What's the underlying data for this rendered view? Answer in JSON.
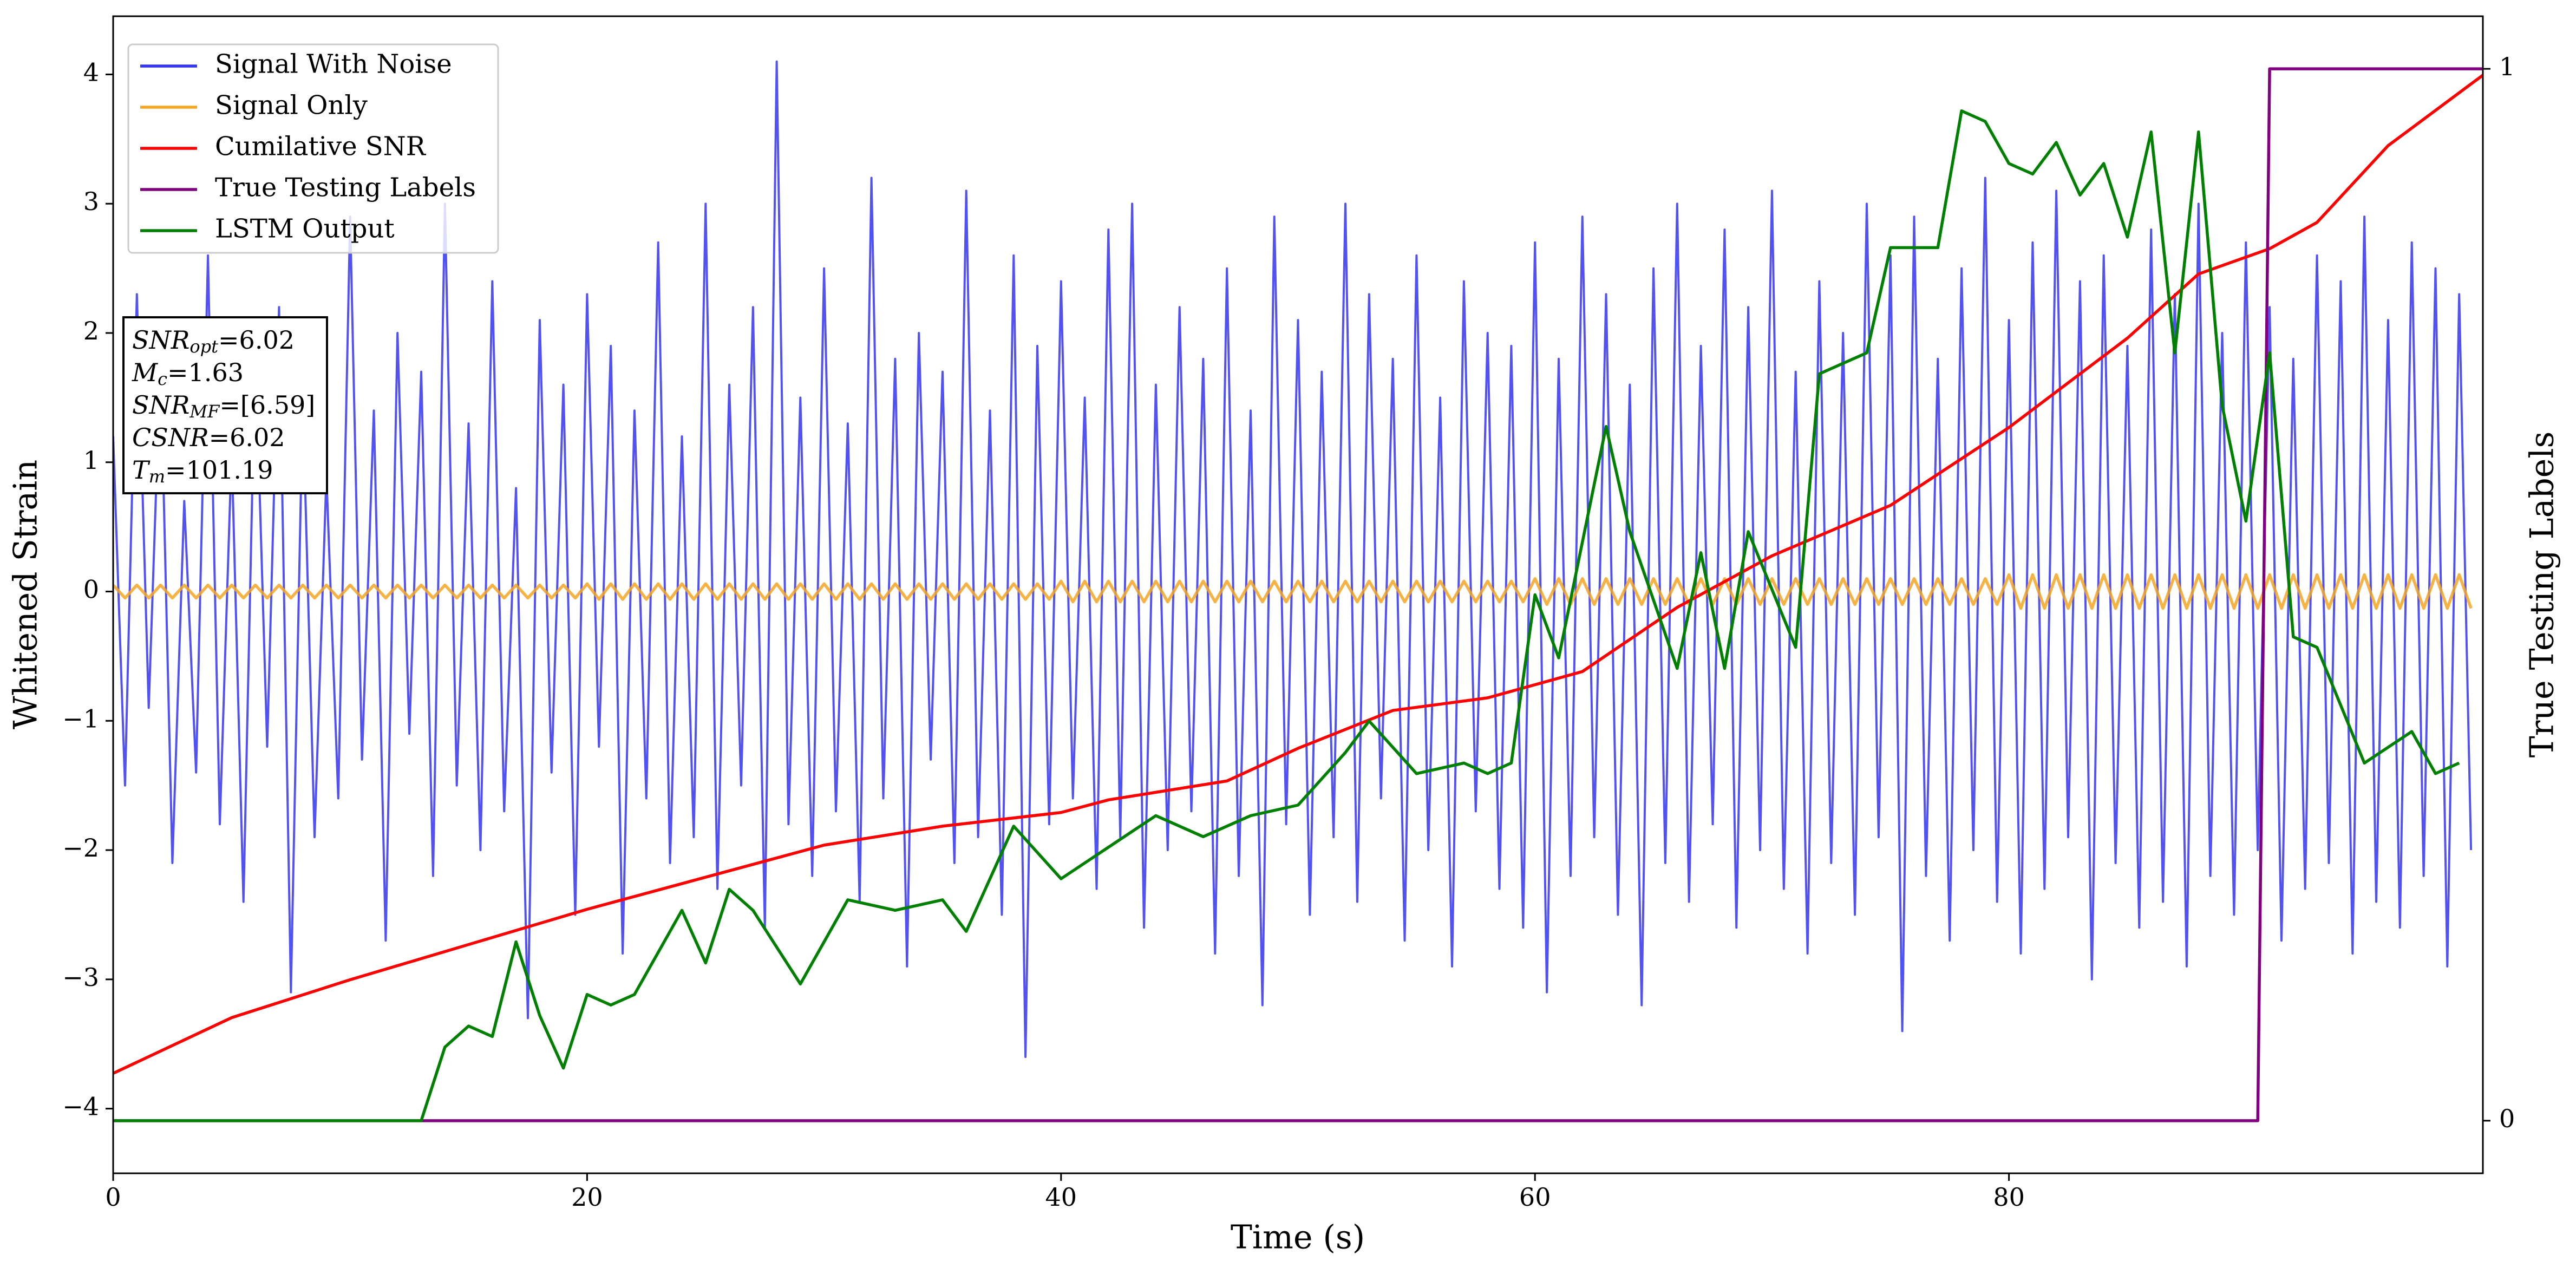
{
  "chart_data": {
    "type": "line",
    "xlabel": "Time (s)",
    "ylabel": "Whitened Strain",
    "y2label": "True Testing Labels",
    "xlim": [
      0,
      100
    ],
    "xticks": [
      0,
      20,
      40,
      60,
      80
    ],
    "ylim": [
      -4.5,
      4.45
    ],
    "yticks": [
      {
        "value": -4,
        "label": "−4"
      },
      {
        "value": -3,
        "label": "−3"
      },
      {
        "value": -2,
        "label": "−2"
      },
      {
        "value": -1,
        "label": "−1"
      },
      0,
      1,
      2,
      3,
      4
    ],
    "y2lim": [
      -0.05,
      1.05
    ],
    "y2ticks": [
      0,
      1
    ],
    "legend": "upper left",
    "x": [
      0,
      0.5,
      1,
      1.5,
      2,
      2.5,
      3,
      3.5,
      4,
      4.5,
      5,
      5.5,
      6,
      6.5,
      7,
      7.5,
      8,
      8.5,
      9,
      9.5,
      10,
      10.5,
      11,
      11.5,
      12,
      12.5,
      13,
      13.5,
      14,
      14.5,
      15,
      15.5,
      16,
      16.5,
      17,
      17.5,
      18,
      18.5,
      19,
      19.5,
      20,
      20.5,
      21,
      21.5,
      22,
      22.5,
      23,
      23.5,
      24,
      24.5,
      25,
      25.5,
      26,
      26.5,
      27,
      27.5,
      28,
      28.5,
      29,
      29.5,
      30,
      30.5,
      31,
      31.5,
      32,
      32.5,
      33,
      33.5,
      34,
      34.5,
      35,
      35.5,
      36,
      36.5,
      37,
      37.5,
      38,
      38.5,
      39,
      39.5,
      40,
      40.5,
      41,
      41.5,
      42,
      42.5,
      43,
      43.5,
      44,
      44.5,
      45,
      45.5,
      46,
      46.5,
      47,
      47.5,
      48,
      48.5,
      49,
      49.5,
      50,
      50.5,
      51,
      51.5,
      52,
      52.5,
      53,
      53.5,
      54,
      54.5,
      55,
      55.5,
      56,
      56.5,
      57,
      57.5,
      58,
      58.5,
      59,
      59.5,
      60,
      60.5,
      61,
      61.5,
      62,
      62.5,
      63,
      63.5,
      64,
      64.5,
      65,
      65.5,
      66,
      66.5,
      67,
      67.5,
      68,
      68.5,
      69,
      69.5,
      70,
      70.5,
      71,
      71.5,
      72,
      72.5,
      73,
      73.5,
      74,
      74.5,
      75,
      75.5,
      76,
      76.5,
      77,
      77.5,
      78,
      78.5,
      79,
      79.5,
      80,
      80.5,
      81,
      81.5,
      82,
      82.5,
      83,
      83.5,
      84,
      84.5,
      85,
      85.5,
      86,
      86.5,
      87,
      87.5,
      88,
      88.5,
      89,
      89.5,
      90,
      90.5,
      91,
      91.5,
      92,
      92.5,
      93,
      93.5,
      94,
      94.5,
      95,
      95.5,
      96,
      96.5,
      97,
      97.5,
      98,
      98.5,
      99,
      99.5
    ],
    "series": [
      {
        "name": "Signal With Noise",
        "color": "#3434f2",
        "values": [
          1.2,
          -1.5,
          2.3,
          -0.9,
          1.8,
          -2.1,
          0.7,
          -1.4,
          2.6,
          -1.8,
          1.1,
          -2.4,
          1.9,
          -1.2,
          2.2,
          -3.1,
          1.5,
          -1.9,
          0.9,
          -1.6,
          2.9,
          -1.3,
          1.4,
          -2.7,
          2.0,
          -1.1,
          1.7,
          -2.2,
          3.0,
          -1.5,
          1.3,
          -2.0,
          2.4,
          -1.7,
          0.8,
          -3.3,
          2.1,
          -1.4,
          1.6,
          -2.5,
          2.3,
          -1.2,
          1.9,
          -2.8,
          1.4,
          -1.6,
          2.7,
          -2.1,
          1.2,
          -1.9,
          3.0,
          -2.3,
          1.6,
          -1.5,
          2.2,
          -2.6,
          4.1,
          -1.8,
          1.5,
          -2.2,
          2.5,
          -1.7,
          1.3,
          -2.4,
          3.2,
          -1.6,
          1.8,
          -2.9,
          2.0,
          -1.3,
          1.7,
          -2.1,
          3.1,
          -1.9,
          1.4,
          -2.5,
          2.6,
          -3.6,
          1.9,
          -1.8,
          2.4,
          -1.6,
          1.5,
          -2.3,
          2.8,
          -1.9,
          3.0,
          -2.6,
          1.6,
          -2.0,
          2.2,
          -1.7,
          1.8,
          -2.8,
          2.5,
          -2.2,
          1.4,
          -3.2,
          2.9,
          -1.8,
          2.1,
          -2.5,
          1.7,
          -1.9,
          3.0,
          -2.4,
          2.3,
          -1.6,
          1.8,
          -2.7,
          2.6,
          -2.0,
          1.5,
          -2.9,
          2.4,
          -1.7,
          2.0,
          -2.3,
          1.9,
          -2.6,
          2.7,
          -3.1,
          1.8,
          -2.2,
          2.9,
          -1.9,
          2.3,
          -2.5,
          1.6,
          -3.2,
          2.5,
          -2.1,
          3.0,
          -2.4,
          1.9,
          -1.8,
          2.8,
          -2.6,
          2.2,
          -2.0,
          3.1,
          -2.3,
          1.7,
          -2.8,
          2.4,
          -2.1,
          2.0,
          -2.5,
          3.0,
          -1.9,
          2.6,
          -3.4,
          2.9,
          -2.2,
          1.8,
          -2.7,
          2.5,
          -2.0,
          3.2,
          -2.4,
          2.1,
          -2.8,
          2.7,
          -2.3,
          3.1,
          -1.9,
          2.4,
          -3.0,
          2.6,
          -2.1,
          1.9,
          -2.6,
          2.8,
          -2.4,
          2.3,
          -2.9,
          3.0,
          -2.2,
          2.0,
          -2.5,
          2.7,
          -2.0,
          2.2,
          -2.7,
          1.8,
          -2.3,
          2.6,
          -2.1,
          2.4,
          -2.8,
          2.9,
          -2.4,
          2.1,
          -2.6,
          2.7,
          -2.2,
          2.5,
          -2.9,
          2.3,
          -2.0
        ]
      },
      {
        "name": "Signal Only",
        "color": "#f5a623",
        "values": [
          0.05,
          -0.05,
          0.05,
          -0.05,
          0.05,
          -0.05,
          0.05,
          -0.05,
          0.05,
          -0.05,
          0.05,
          -0.05,
          0.05,
          -0.05,
          0.05,
          -0.05,
          0.05,
          -0.05,
          0.05,
          -0.05,
          0.05,
          -0.05,
          0.05,
          -0.05,
          0.05,
          -0.05,
          0.05,
          -0.05,
          0.05,
          -0.05,
          0.05,
          -0.05,
          0.05,
          -0.05,
          0.05,
          -0.05,
          0.05,
          -0.05,
          0.05,
          -0.05,
          0.06,
          -0.06,
          0.06,
          -0.06,
          0.06,
          -0.06,
          0.06,
          -0.06,
          0.06,
          -0.06,
          0.06,
          -0.06,
          0.06,
          -0.06,
          0.06,
          -0.06,
          0.06,
          -0.06,
          0.06,
          -0.06,
          0.06,
          -0.06,
          0.06,
          -0.06,
          0.06,
          -0.06,
          0.06,
          -0.06,
          0.06,
          -0.06,
          0.06,
          -0.06,
          0.06,
          -0.06,
          0.06,
          -0.06,
          0.06,
          -0.06,
          0.06,
          -0.06,
          0.08,
          -0.08,
          0.08,
          -0.08,
          0.08,
          -0.08,
          0.08,
          -0.08,
          0.08,
          -0.08,
          0.08,
          -0.08,
          0.08,
          -0.08,
          0.08,
          -0.08,
          0.08,
          -0.08,
          0.08,
          -0.08,
          0.08,
          -0.08,
          0.08,
          -0.08,
          0.08,
          -0.08,
          0.08,
          -0.08,
          0.08,
          -0.08,
          0.08,
          -0.08,
          0.08,
          -0.08,
          0.08,
          -0.08,
          0.08,
          -0.08,
          0.08,
          -0.08,
          0.1,
          -0.1,
          0.1,
          -0.1,
          0.1,
          -0.1,
          0.1,
          -0.1,
          0.1,
          -0.1,
          0.1,
          -0.1,
          0.1,
          -0.1,
          0.1,
          -0.1,
          0.1,
          -0.1,
          0.1,
          -0.1,
          0.1,
          -0.1,
          0.1,
          -0.1,
          0.1,
          -0.1,
          0.1,
          -0.1,
          0.1,
          -0.1,
          0.1,
          -0.1,
          0.1,
          -0.1,
          0.1,
          -0.1,
          0.1,
          -0.1,
          0.1,
          -0.1,
          0.13,
          -0.13,
          0.13,
          -0.13,
          0.13,
          -0.13,
          0.13,
          -0.13,
          0.13,
          -0.13,
          0.13,
          -0.13,
          0.13,
          -0.13,
          0.13,
          -0.13,
          0.13,
          -0.13,
          0.13,
          -0.13,
          0.13,
          -0.13,
          0.13,
          -0.13,
          0.13,
          -0.13,
          0.13,
          -0.13,
          0.13,
          -0.13,
          0.13,
          -0.13,
          0.13,
          -0.13,
          0.13,
          -0.13,
          0.13,
          -0.13,
          0.13,
          -0.13
        ]
      },
      {
        "name": "Cumilative SNR",
        "color": "#ff0000",
        "axis": "y2",
        "x": [
          0,
          5,
          10,
          20,
          30,
          35,
          40,
          42,
          47,
          50,
          54,
          58,
          62,
          66,
          70,
          75,
          80,
          85,
          88,
          91,
          93,
          96,
          100
        ],
        "values": [
          0.045,
          0.098,
          0.134,
          0.201,
          0.262,
          0.28,
          0.293,
          0.305,
          0.323,
          0.354,
          0.39,
          0.402,
          0.427,
          0.488,
          0.537,
          0.585,
          0.659,
          0.744,
          0.805,
          0.829,
          0.854,
          0.927,
          0.994
        ]
      },
      {
        "name": "True Testing Labels",
        "color": "#800080",
        "axis": "y2",
        "x": [
          0,
          90.5,
          91,
          100
        ],
        "values": [
          0,
          0,
          1,
          1
        ]
      },
      {
        "name": "LSTM Output",
        "color": "#008000",
        "axis": "y2",
        "x": [
          0,
          13,
          14,
          15,
          16,
          17,
          18,
          19,
          20,
          21,
          22,
          24,
          25,
          26,
          27,
          29,
          30,
          31,
          33,
          35,
          36,
          38,
          40,
          42,
          44,
          46,
          48,
          50,
          52,
          53,
          55,
          57,
          58,
          59,
          60,
          61,
          62,
          63,
          64,
          66,
          67,
          68,
          69,
          71,
          72,
          74,
          75,
          77,
          78,
          79,
          80,
          81,
          82,
          83,
          84,
          85,
          86,
          87,
          88,
          89,
          90,
          91,
          92,
          93,
          95,
          97,
          98,
          99
        ],
        "values": [
          0,
          0,
          0.07,
          0.09,
          0.08,
          0.17,
          0.1,
          0.05,
          0.12,
          0.11,
          0.12,
          0.2,
          0.15,
          0.22,
          0.2,
          0.13,
          0.17,
          0.21,
          0.2,
          0.21,
          0.18,
          0.28,
          0.23,
          0.26,
          0.29,
          0.27,
          0.29,
          0.3,
          0.35,
          0.38,
          0.33,
          0.34,
          0.33,
          0.34,
          0.5,
          0.44,
          0.55,
          0.66,
          0.56,
          0.43,
          0.54,
          0.43,
          0.56,
          0.45,
          0.71,
          0.73,
          0.83,
          0.83,
          0.96,
          0.95,
          0.91,
          0.9,
          0.93,
          0.88,
          0.91,
          0.84,
          0.94,
          0.73,
          0.94,
          0.68,
          0.57,
          0.73,
          0.46,
          0.45,
          0.34,
          0.37,
          0.33,
          0.34
        ]
      }
    ],
    "annotations": [
      {
        "base": "SNR",
        "sub": "opt",
        "value": "=6.02"
      },
      {
        "base": "M",
        "sub": "c",
        "value": "=1.63"
      },
      {
        "base": "SNR",
        "sub": "MF",
        "value": "=[6.59]"
      },
      {
        "base": "CSNR",
        "value": "=6.02"
      },
      {
        "base": "T",
        "sub": "m",
        "value": "=101.19"
      }
    ]
  }
}
